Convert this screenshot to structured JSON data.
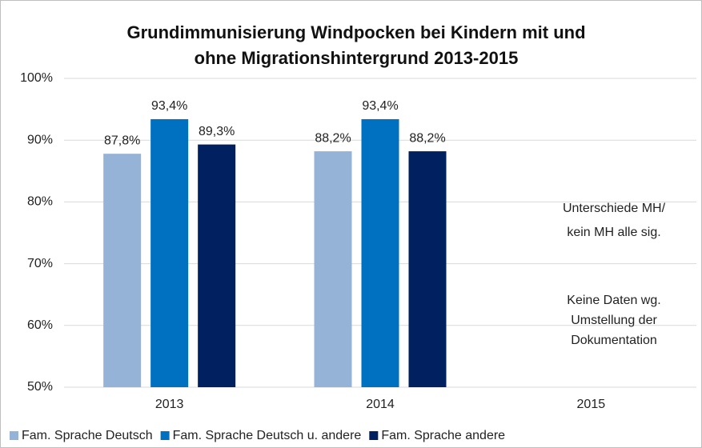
{
  "chart_data": {
    "type": "bar",
    "title": [
      "Grundimmunisierung Windpocken bei Kindern mit und",
      "ohne Migrationshintergrund 2013-2015"
    ],
    "categories": [
      "2013",
      "2014",
      "2015"
    ],
    "series": [
      {
        "name": "Fam. Sprache Deutsch",
        "color": "#95b3d7",
        "values": [
          87.8,
          88.2,
          null
        ],
        "value_labels": [
          "87,8%",
          "88,2%",
          null
        ]
      },
      {
        "name": "Fam. Sprache Deutsch u. andere",
        "color": "#0070c0",
        "values": [
          93.4,
          93.4,
          null
        ],
        "value_labels": [
          "93,4%",
          "93,4%",
          null
        ]
      },
      {
        "name": "Fam. Sprache andere",
        "color": "#002060",
        "values": [
          89.3,
          88.2,
          null
        ],
        "value_labels": [
          "89,3%",
          "88,2%",
          null
        ]
      }
    ],
    "ylim": [
      50,
      100
    ],
    "yticks": [
      {
        "value": 50,
        "label": "50%"
      },
      {
        "value": 60,
        "label": "60%"
      },
      {
        "value": 70,
        "label": "70%"
      },
      {
        "value": 80,
        "label": "80%"
      },
      {
        "value": 90,
        "label": "90%"
      },
      {
        "value": 100,
        "label": "100%"
      }
    ],
    "grid": true,
    "legend": "bottom",
    "annotations": [
      [
        "Unterschiede MH/",
        "kein MH alle sig."
      ],
      [
        "Keine Daten wg.",
        "Umstellung der",
        "Dokumentation"
      ]
    ]
  }
}
